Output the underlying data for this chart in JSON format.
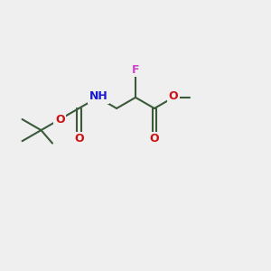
{
  "bg_color": "#efefef",
  "bond_color": "#3a5a3a",
  "N_color": "#1a1acc",
  "O_color": "#cc1010",
  "F_color": "#cc44cc",
  "H_color": "#7a9a7a",
  "line_width": 1.5,
  "figsize": [
    3.0,
    3.0
  ],
  "dpi": 100,
  "xlim": [
    0.0,
    1.0
  ],
  "ylim": [
    0.15,
    0.85
  ]
}
